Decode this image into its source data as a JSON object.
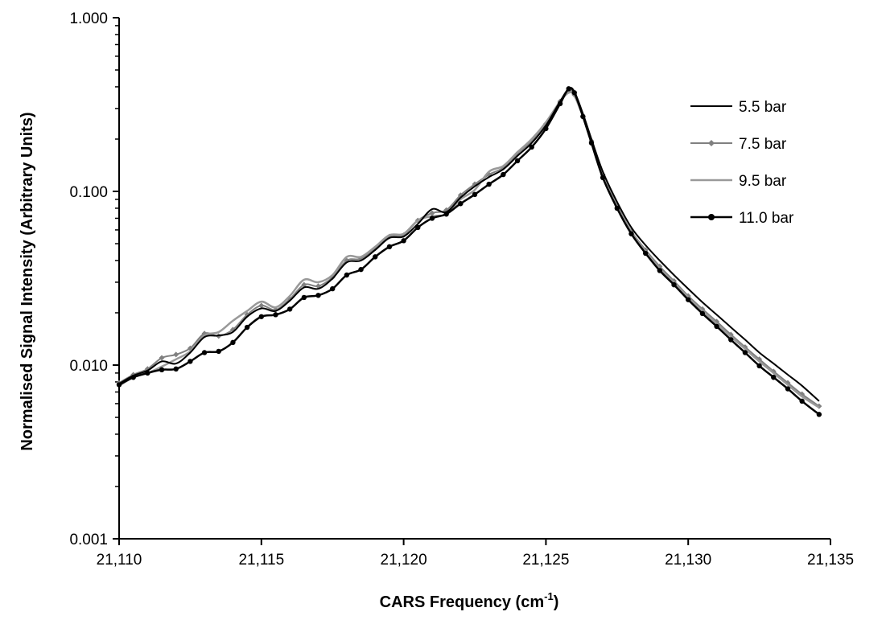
{
  "chart_data": {
    "type": "line",
    "xlabel": "CARS Frequency (cm",
    "xlabel_sup": "-1",
    "xlabel_end": ")",
    "ylabel": "Normalised Signal Intensity (Arbitrary Units)",
    "xlim": [
      21110,
      21135
    ],
    "ylim": [
      0.001,
      1.0
    ],
    "yscale": "log",
    "x_ticks": [
      21110,
      21115,
      21120,
      21125,
      21130,
      21135
    ],
    "x_tick_labels": [
      "21,110",
      "21,115",
      "21,120",
      "21,125",
      "21,130",
      "21,135"
    ],
    "y_ticks": [
      0.001,
      0.01,
      0.1,
      1.0
    ],
    "y_tick_labels": [
      "0.001",
      "0.010",
      "0.100",
      "1.000"
    ],
    "grid": false,
    "legend_position": "top-right",
    "x": [
      21110.0,
      21110.5,
      21111.0,
      21111.5,
      21112.0,
      21112.5,
      21113.0,
      21113.5,
      21114.0,
      21114.5,
      21115.0,
      21115.5,
      21116.0,
      21116.5,
      21117.0,
      21117.5,
      21118.0,
      21118.5,
      21119.0,
      21119.5,
      21120.0,
      21120.5,
      21121.0,
      21121.5,
      21122.0,
      21122.5,
      21123.0,
      21123.5,
      21124.0,
      21124.5,
      21125.0,
      21125.5,
      21125.8,
      21126.0,
      21126.3,
      21126.6,
      21127.0,
      21127.5,
      21128.0,
      21128.5,
      21129.0,
      21129.5,
      21130.0,
      21130.5,
      21131.0,
      21131.5,
      21132.0,
      21132.5,
      21133.0,
      21133.5,
      21134.0,
      21134.6
    ],
    "series": [
      {
        "name": "5.5 bar",
        "color": "#000000",
        "marker": "none",
        "width": 2,
        "values": [
          0.0078,
          0.0087,
          0.0093,
          0.0105,
          0.0102,
          0.0118,
          0.0145,
          0.0148,
          0.0155,
          0.019,
          0.0212,
          0.0205,
          0.0235,
          0.028,
          0.0275,
          0.0315,
          0.039,
          0.04,
          0.046,
          0.054,
          0.055,
          0.065,
          0.079,
          0.076,
          0.092,
          0.107,
          0.121,
          0.134,
          0.16,
          0.19,
          0.24,
          0.33,
          0.39,
          0.375,
          0.28,
          0.2,
          0.13,
          0.087,
          0.062,
          0.049,
          0.04,
          0.033,
          0.0275,
          0.023,
          0.0195,
          0.0165,
          0.014,
          0.0118,
          0.0102,
          0.0088,
          0.0076,
          0.0062
        ]
      },
      {
        "name": "7.5 bar",
        "color": "#808080",
        "marker": "diamond",
        "width": 2,
        "values": [
          0.0079,
          0.0088,
          0.0095,
          0.011,
          0.0115,
          0.0125,
          0.0152,
          0.0147,
          0.016,
          0.0195,
          0.022,
          0.0208,
          0.024,
          0.029,
          0.0285,
          0.032,
          0.04,
          0.041,
          0.047,
          0.055,
          0.056,
          0.068,
          0.075,
          0.078,
          0.095,
          0.11,
          0.125,
          0.137,
          0.165,
          0.195,
          0.245,
          0.33,
          0.38,
          0.36,
          0.27,
          0.195,
          0.125,
          0.083,
          0.059,
          0.046,
          0.037,
          0.0305,
          0.025,
          0.021,
          0.0178,
          0.015,
          0.0127,
          0.0108,
          0.0092,
          0.0079,
          0.0068,
          0.0058
        ]
      },
      {
        "name": "9.5 bar",
        "color": "#999999",
        "marker": "none",
        "width": 2.5,
        "values": [
          0.0076,
          0.0085,
          0.009,
          0.0098,
          0.0108,
          0.012,
          0.0148,
          0.0155,
          0.018,
          0.0205,
          0.0232,
          0.0215,
          0.025,
          0.031,
          0.03,
          0.033,
          0.042,
          0.042,
          0.048,
          0.056,
          0.057,
          0.068,
          0.072,
          0.074,
          0.09,
          0.102,
          0.13,
          0.14,
          0.168,
          0.2,
          0.25,
          0.33,
          0.37,
          0.355,
          0.27,
          0.19,
          0.122,
          0.081,
          0.058,
          0.045,
          0.036,
          0.0298,
          0.0245,
          0.0205,
          0.0173,
          0.0146,
          0.0124,
          0.0105,
          0.009,
          0.0077,
          0.0066,
          0.0057
        ]
      },
      {
        "name": "11.0 bar",
        "color": "#000000",
        "marker": "circle",
        "width": 2.5,
        "values": [
          0.0077,
          0.0085,
          0.009,
          0.0094,
          0.0095,
          0.0105,
          0.0118,
          0.012,
          0.0135,
          0.0165,
          0.019,
          0.0195,
          0.021,
          0.0245,
          0.0252,
          0.0275,
          0.033,
          0.0355,
          0.042,
          0.048,
          0.052,
          0.062,
          0.07,
          0.074,
          0.085,
          0.096,
          0.11,
          0.125,
          0.15,
          0.18,
          0.23,
          0.32,
          0.39,
          0.37,
          0.27,
          0.19,
          0.12,
          0.08,
          0.057,
          0.044,
          0.035,
          0.029,
          0.0238,
          0.0198,
          0.0167,
          0.014,
          0.0118,
          0.0099,
          0.0085,
          0.0073,
          0.0062,
          0.0052
        ]
      }
    ]
  }
}
